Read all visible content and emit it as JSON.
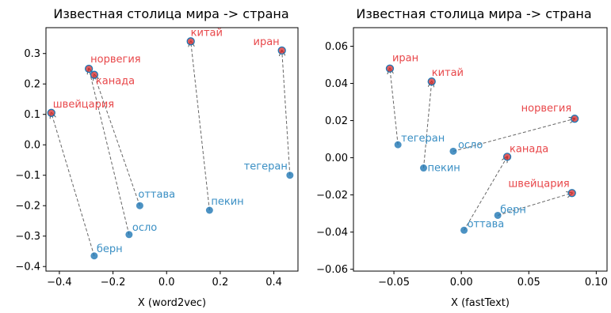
{
  "colors": {
    "capital": "#1f77b4",
    "country": "#d62728",
    "arrow": "#666666",
    "capital_label": "#3a8fc4",
    "country_label": "#e8474a"
  },
  "chart_data": [
    {
      "type": "scatter",
      "title": "Известная столица мира -> страна",
      "xlabel": "X (word2vec)",
      "ylabel": "",
      "xlim": [
        -0.45,
        0.49
      ],
      "ylim": [
        -0.415,
        0.385
      ],
      "xticks": [
        -0.4,
        -0.2,
        0.0,
        0.2,
        0.4
      ],
      "xtick_labels": [
        "−0.4",
        "−0.2",
        "0.0",
        "0.2",
        "0.4"
      ],
      "yticks": [
        -0.4,
        -0.3,
        -0.2,
        -0.1,
        0.0,
        0.1,
        0.2,
        0.3
      ],
      "ytick_labels": [
        "−0.4",
        "−0.3",
        "−0.2",
        "−0.1",
        "0.0",
        "0.1",
        "0.2",
        "0.3"
      ],
      "grid": false,
      "capitals": [
        {
          "label": "берн",
          "x": -0.27,
          "y": -0.365
        },
        {
          "label": "оттава",
          "x": -0.1,
          "y": -0.2
        },
        {
          "label": "осло",
          "x": -0.14,
          "y": -0.295
        },
        {
          "label": "пекин",
          "x": 0.16,
          "y": -0.215
        },
        {
          "label": "тегеран",
          "x": 0.46,
          "y": -0.1
        }
      ],
      "countries": [
        {
          "label": "швейцария",
          "x": -0.43,
          "y": 0.105
        },
        {
          "label": "канада",
          "x": -0.27,
          "y": 0.23
        },
        {
          "label": "норвегия",
          "x": -0.29,
          "y": 0.25
        },
        {
          "label": "китай",
          "x": 0.09,
          "y": 0.34
        },
        {
          "label": "иран",
          "x": 0.43,
          "y": 0.31
        }
      ],
      "arrows": [
        {
          "from": "берн",
          "to": "швейцария"
        },
        {
          "from": "оттава",
          "to": "канада"
        },
        {
          "from": "осло",
          "to": "норвегия"
        },
        {
          "from": "пекин",
          "to": "китай"
        },
        {
          "from": "тегеран",
          "to": "иран"
        }
      ]
    },
    {
      "type": "scatter",
      "title": "Известная столица мира -> страна",
      "xlabel": "X (fastText)",
      "ylabel": "",
      "xlim": [
        -0.08,
        0.108
      ],
      "ylim": [
        -0.061,
        0.07
      ],
      "xticks": [
        -0.05,
        0.0,
        0.05,
        0.1
      ],
      "xtick_labels": [
        "−0.05",
        "0.00",
        "0.05",
        "0.10"
      ],
      "yticks": [
        -0.06,
        -0.04,
        -0.02,
        0.0,
        0.02,
        0.04,
        0.06
      ],
      "ytick_labels": [
        "−0.06",
        "−0.04",
        "−0.02",
        "0.00",
        "0.02",
        "0.04",
        "0.06"
      ],
      "grid": false,
      "capitals": [
        {
          "label": "тегеран",
          "x": -0.047,
          "y": 0.007
        },
        {
          "label": "пекин",
          "x": -0.028,
          "y": -0.0055
        },
        {
          "label": "осло",
          "x": -0.006,
          "y": 0.0035
        },
        {
          "label": "оттава",
          "x": 0.002,
          "y": -0.039
        },
        {
          "label": "берн",
          "x": 0.027,
          "y": -0.031
        }
      ],
      "countries": [
        {
          "label": "иран",
          "x": -0.053,
          "y": 0.048
        },
        {
          "label": "китай",
          "x": -0.022,
          "y": 0.041
        },
        {
          "label": "норвегия",
          "x": 0.084,
          "y": 0.021
        },
        {
          "label": "канада",
          "x": 0.034,
          "y": 0.0005
        },
        {
          "label": "швейцария",
          "x": 0.082,
          "y": -0.019
        }
      ],
      "arrows": [
        {
          "from": "тегеран",
          "to": "иран"
        },
        {
          "from": "пекин",
          "to": "китай"
        },
        {
          "from": "осло",
          "to": "норвегия"
        },
        {
          "from": "оттава",
          "to": "канада"
        },
        {
          "from": "берн",
          "to": "швейцария"
        }
      ]
    }
  ]
}
